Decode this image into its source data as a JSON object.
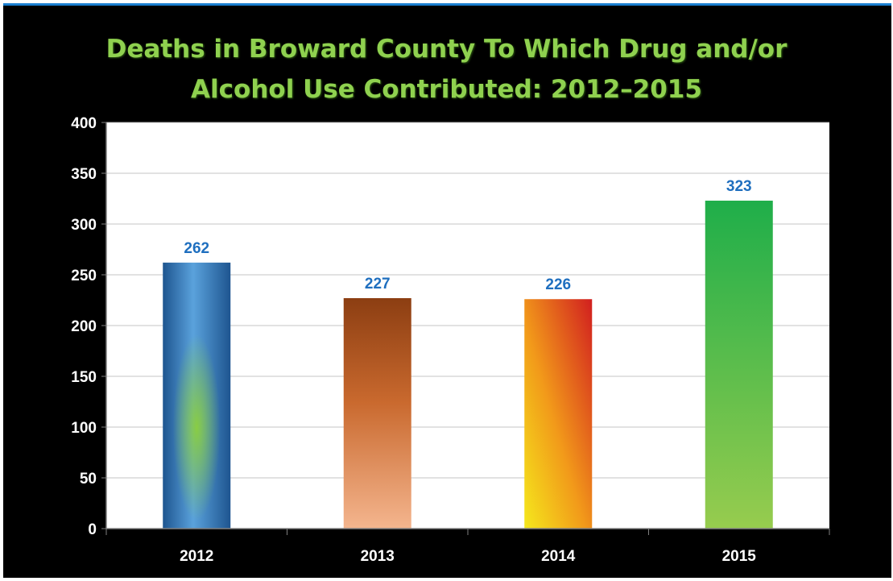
{
  "chart_data": {
    "type": "bar",
    "title_lines": [
      "Deaths in Broward County To Which Drug and/or",
      "Alcohol Use Contributed: 2012–2015"
    ],
    "categories": [
      "2012",
      "2013",
      "2014",
      "2015"
    ],
    "values": [
      262,
      227,
      226,
      323
    ],
    "data_labels": [
      "262",
      "227",
      "226",
      "323"
    ],
    "ylim": [
      0,
      400
    ],
    "yticks": [
      0,
      50,
      100,
      150,
      200,
      250,
      300,
      350,
      400
    ],
    "xlabel": "",
    "ylabel": "",
    "grid": true,
    "legend": "none",
    "colors": {
      "title": "#8fd14f",
      "data_label": "#1f6fbf",
      "background": "#000000",
      "plot_area": "#ffffff",
      "bars": [
        "#2e6fb5",
        "#a9501e",
        "#e8841a",
        "#3cb84c"
      ]
    }
  }
}
